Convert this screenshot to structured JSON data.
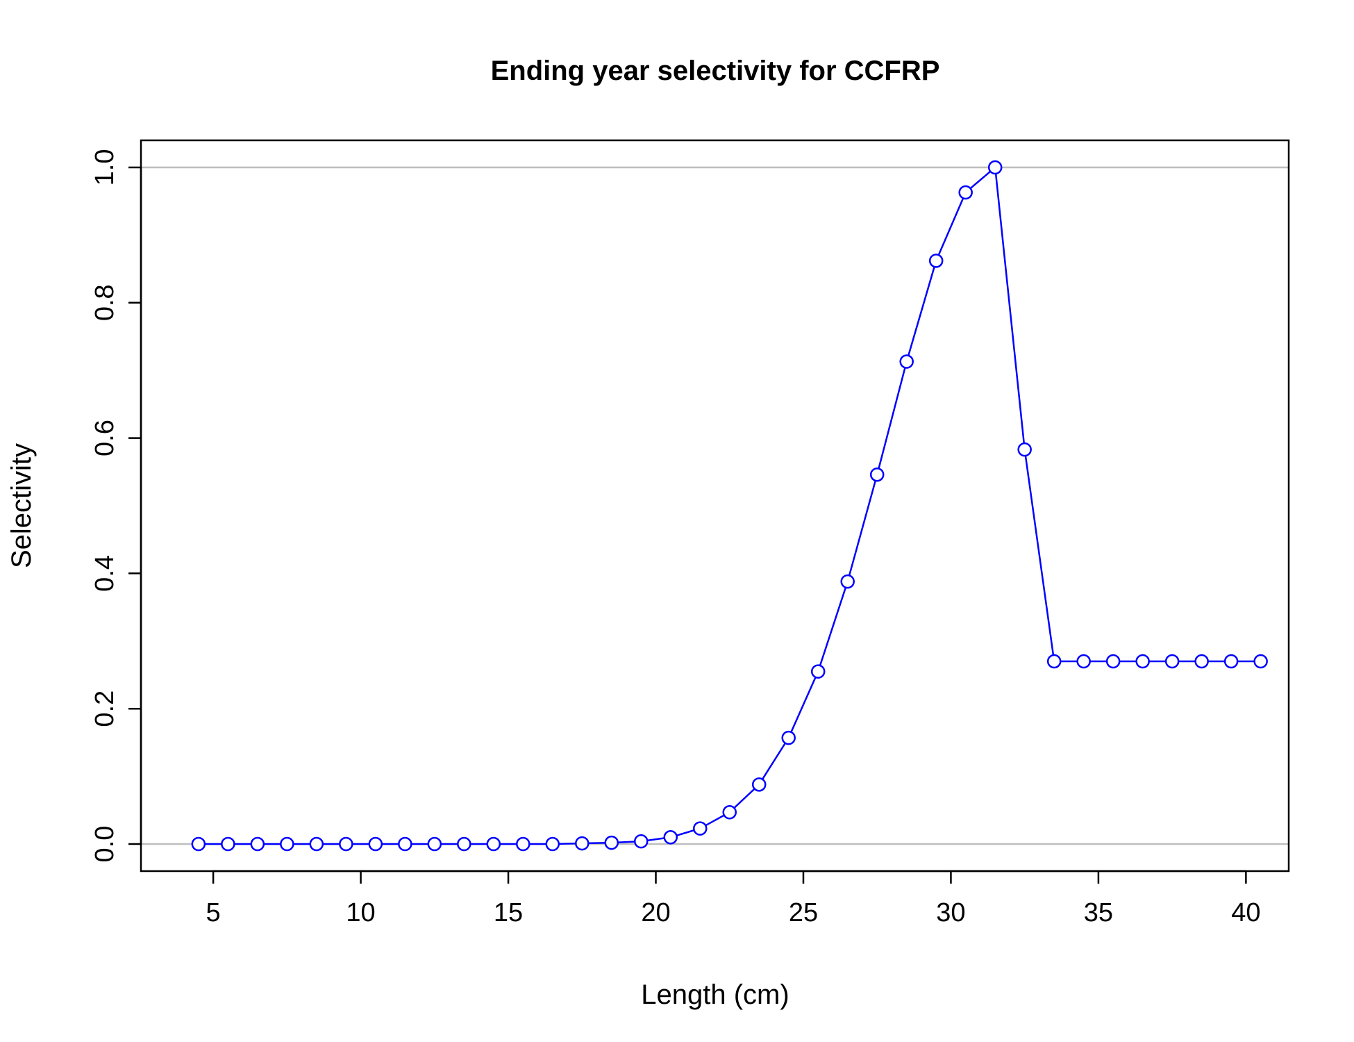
{
  "chart_data": {
    "type": "line",
    "title": "Ending year selectivity for CCFRP",
    "xlabel": "Length (cm)",
    "ylabel": "Selectivity",
    "xlim": [
      2.55,
      41.45
    ],
    "ylim": [
      -0.04,
      1.04
    ],
    "x_ticks": [
      5,
      10,
      15,
      20,
      25,
      30,
      35,
      40
    ],
    "x_tick_labels": [
      "5",
      "10",
      "15",
      "20",
      "25",
      "30",
      "35",
      "40"
    ],
    "y_ticks": [
      0.0,
      0.2,
      0.4,
      0.6,
      0.8,
      1.0
    ],
    "y_tick_labels": [
      "0.0",
      "0.2",
      "0.4",
      "0.6",
      "0.8",
      "1.0"
    ],
    "reference_lines_y": [
      0,
      1
    ],
    "reference_line_color": "#bebebe",
    "grid": false,
    "legend": "none",
    "marker": "open-circle",
    "series": [
      {
        "color": "#0000ff",
        "x": [
          4.5,
          5.5,
          6.5,
          7.5,
          8.5,
          9.5,
          10.5,
          11.5,
          12.5,
          13.5,
          14.5,
          15.5,
          16.5,
          17.5,
          18.5,
          19.5,
          20.5,
          21.5,
          22.5,
          23.5,
          24.5,
          25.5,
          26.5,
          27.5,
          28.5,
          29.5,
          30.5,
          31.5,
          32.5,
          33.5,
          34.5,
          35.5,
          36.5,
          37.5,
          38.5,
          39.5,
          40.5
        ],
        "y": [
          0.0,
          0.0,
          0.0,
          0.0,
          0.0,
          0.0,
          0.0,
          0.0,
          0.0,
          0.0,
          0.0,
          0.0,
          0.0,
          0.001,
          0.002,
          0.004,
          0.01,
          0.023,
          0.047,
          0.088,
          0.157,
          0.255,
          0.388,
          0.546,
          0.713,
          0.862,
          0.963,
          1.0,
          0.583,
          0.27,
          0.27,
          0.27,
          0.27,
          0.27,
          0.27,
          0.27,
          0.27
        ]
      }
    ]
  }
}
